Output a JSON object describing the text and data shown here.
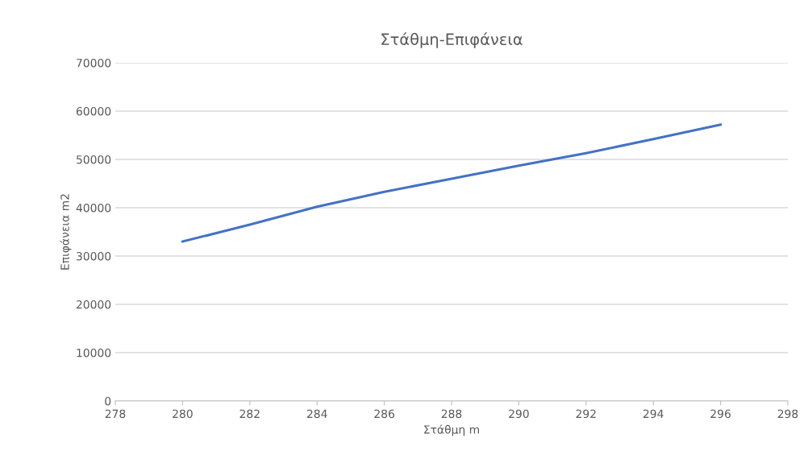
{
  "chart_data": {
    "type": "line",
    "title": "Στάθμη-Επιφάνεια",
    "xlabel": "Στάθμη m",
    "ylabel": "Επιφάνεια m2",
    "x": [
      280,
      282,
      284,
      286,
      288,
      290,
      292,
      294,
      296
    ],
    "series": [
      {
        "color": "#4472c4",
        "values": [
          33000,
          36500,
          40200,
          43300,
          46000,
          48700,
          51300,
          54200,
          57200
        ]
      }
    ],
    "xlim": [
      278,
      298
    ],
    "xticks": [
      278,
      280,
      282,
      284,
      286,
      288,
      290,
      292,
      294,
      296,
      298
    ],
    "ylim": [
      0,
      70000
    ],
    "yticks": [
      0,
      10000,
      20000,
      30000,
      40000,
      50000,
      60000,
      70000
    ],
    "grid": "y",
    "legend": false,
    "marker": "none",
    "line_style": "solid"
  }
}
